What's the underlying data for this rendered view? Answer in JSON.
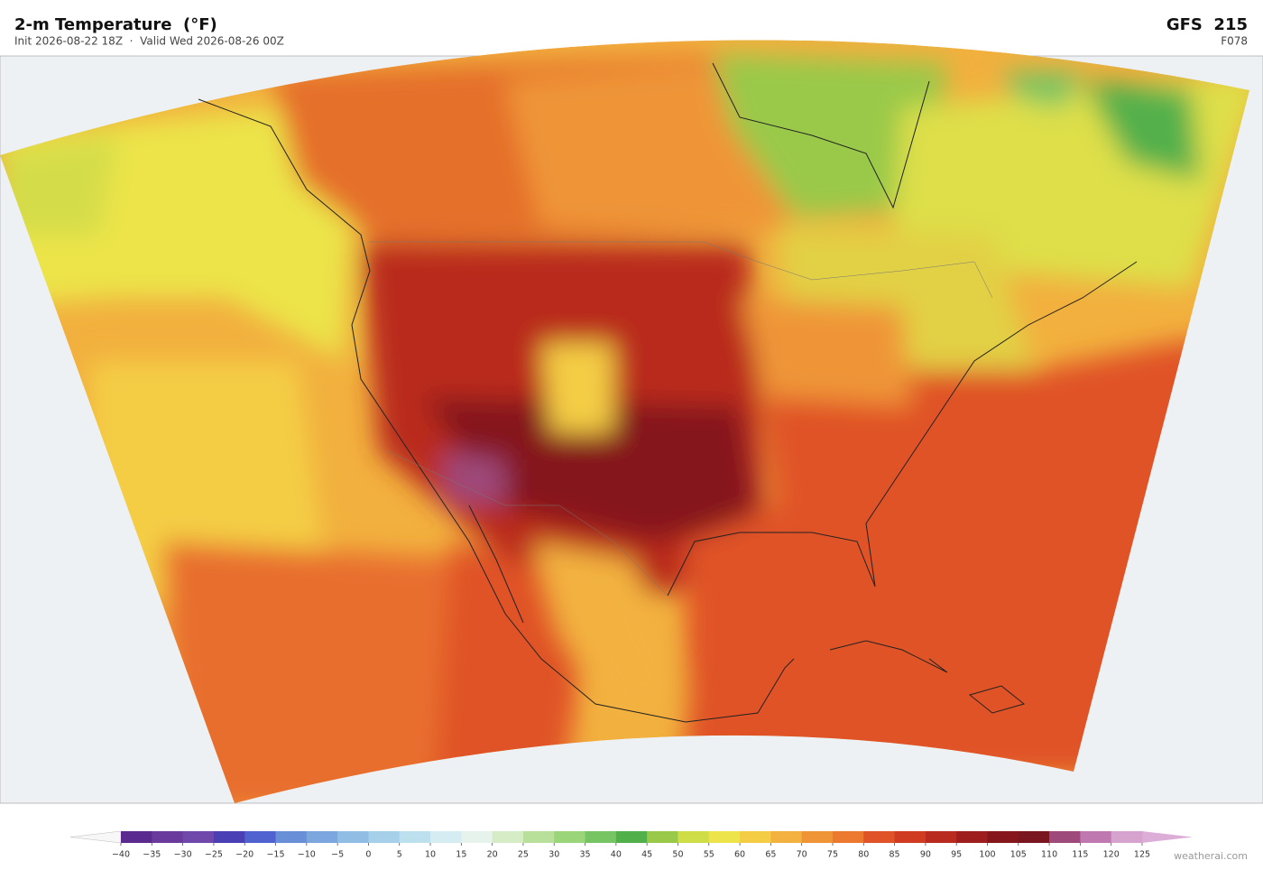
{
  "header": {
    "title": "2-m Temperature  (°F)",
    "subtitle": "Init 2026-08-22 18Z  ·  Valid Wed 2026-08-26 00Z",
    "model": "GFS  215",
    "forecast_hour": "F078"
  },
  "colorbar": {
    "ticks": [
      {
        "value": -40,
        "label": "−40"
      },
      {
        "value": -35,
        "label": "−35"
      },
      {
        "value": -30,
        "label": "−30"
      },
      {
        "value": -25,
        "label": "−25"
      },
      {
        "value": -20,
        "label": "−20"
      },
      {
        "value": -15,
        "label": "−15"
      },
      {
        "value": -10,
        "label": "−10"
      },
      {
        "value": -5,
        "label": "−5"
      },
      0,
      5,
      10,
      15,
      20,
      25,
      30,
      35,
      40,
      45,
      50,
      55,
      60,
      65,
      70,
      75,
      80,
      85,
      90,
      95,
      100,
      105,
      110,
      115,
      120,
      125
    ],
    "colors": [
      "#5b2a8e",
      "#6a3a9c",
      "#7048ac",
      "#4a3fb5",
      "#4f62cf",
      "#6a8fd9",
      "#7ea6de",
      "#91bde4",
      "#a6cfea",
      "#bde0ef",
      "#d5ecf2",
      "#e5f3ec",
      "#d6ecc6",
      "#b9e09a",
      "#9ad57a",
      "#76c463",
      "#52b04b",
      "#9ac94a",
      "#cfdd47",
      "#ece44a",
      "#f4cd45",
      "#f3b23f",
      "#ef9537",
      "#eb7a30",
      "#e05328",
      "#d03c22",
      "#b92a1f",
      "#9e1e1d",
      "#85161b",
      "#7a1620",
      "#9e4a7a",
      "#bf78b0",
      "#d6a3cf"
    ],
    "extend_colors": [
      "#f7f7f7",
      "#dcaed7"
    ]
  },
  "footer": {
    "watermark": "weatherai.com"
  }
}
